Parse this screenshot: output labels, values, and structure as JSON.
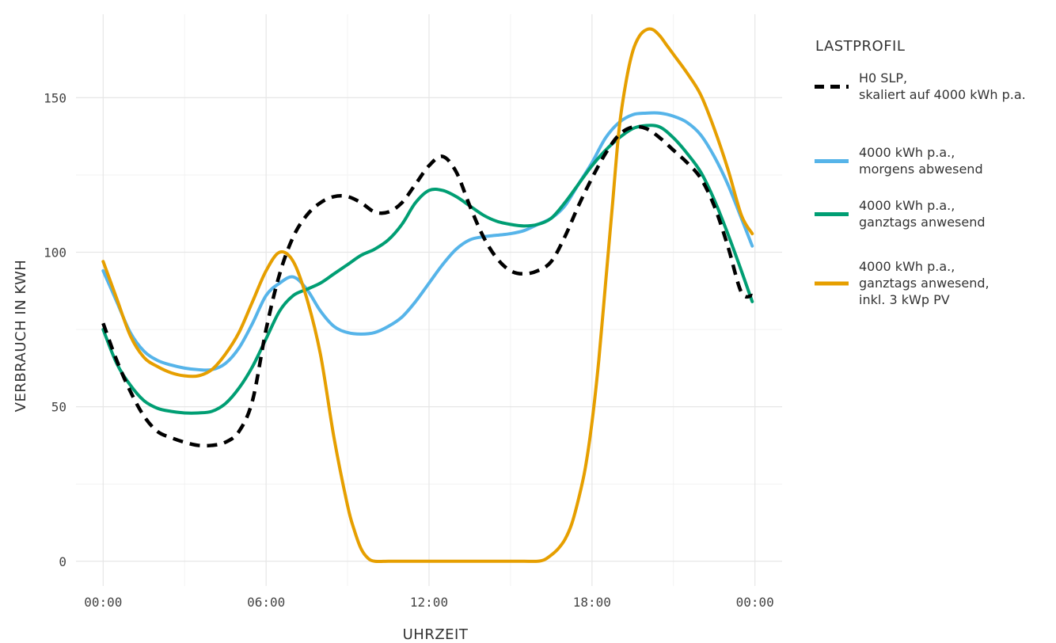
{
  "chart_data": {
    "type": "line",
    "xlabel": "UHRZEIT",
    "ylabel": "VERBRAUCH IN KWH",
    "x_tick_labels": [
      "00:00",
      "06:00",
      "12:00",
      "18:00",
      "00:00"
    ],
    "x_tick_hours": [
      0,
      6,
      12,
      18,
      24
    ],
    "y_ticks": [
      0,
      50,
      100,
      150
    ],
    "xlim_hours": [
      -1,
      25
    ],
    "ylim": [
      -8,
      177
    ],
    "grid": true,
    "legend_position": "right",
    "legend_title": "LASTPROFIL",
    "series": [
      {
        "name": "H0 SLP,\nskaliert auf 4000 kWh p.a.",
        "color": "#000000",
        "dashed": true,
        "hours": [
          0,
          0.5,
          1,
          1.5,
          2,
          2.5,
          3,
          3.5,
          4,
          4.5,
          5,
          5.5,
          6,
          6.5,
          7,
          7.5,
          8,
          8.5,
          9,
          9.5,
          10,
          10.5,
          11,
          11.5,
          12,
          12.5,
          13,
          13.5,
          14,
          14.5,
          15,
          15.5,
          16,
          16.5,
          17,
          17.5,
          18,
          18.5,
          19,
          19.5,
          20,
          20.5,
          21,
          21.5,
          22,
          22.5,
          23,
          23.5,
          23.9
        ],
        "values": [
          77,
          65,
          55,
          47,
          42,
          40,
          38.5,
          37.5,
          37.5,
          38.5,
          42,
          52,
          75,
          93,
          105,
          112,
          116,
          118,
          118,
          116,
          113,
          113,
          116,
          122,
          128,
          131,
          126,
          115,
          105,
          98,
          94,
          93,
          94,
          97,
          105,
          115,
          124,
          132,
          138,
          140.5,
          140,
          137,
          133,
          129,
          124,
          115,
          102,
          87,
          86
        ]
      },
      {
        "name": "4000 kWh p.a.,\nmorgens abwesend",
        "color": "#56b4e9",
        "dashed": false,
        "hours": [
          0,
          0.5,
          1,
          1.5,
          2,
          2.5,
          3,
          3.5,
          4,
          4.5,
          5,
          5.5,
          6,
          6.5,
          7,
          7.5,
          8,
          8.5,
          9,
          9.5,
          10,
          10.5,
          11,
          11.5,
          12,
          12.5,
          13,
          13.5,
          14,
          14.5,
          15,
          15.5,
          16,
          16.5,
          17,
          17.5,
          18,
          18.5,
          19,
          19.5,
          20,
          20.5,
          21,
          21.5,
          22,
          22.5,
          23,
          23.5,
          23.9
        ],
        "values": [
          94,
          84,
          74,
          68,
          65,
          63.5,
          62.5,
          62,
          62,
          64,
          69,
          77,
          86,
          90,
          92,
          88,
          81,
          76,
          74,
          73.5,
          74,
          76,
          79,
          84,
          90,
          96,
          101,
          104,
          105,
          105.5,
          106,
          107,
          109,
          111,
          115,
          122,
          129,
          137,
          142,
          144.5,
          145,
          145,
          144,
          142,
          138,
          131,
          122,
          111,
          102
        ]
      },
      {
        "name": "4000 kWh p.a.,\nganztags anwesend",
        "color": "#009e73",
        "dashed": false,
        "hours": [
          0,
          0.5,
          1,
          1.5,
          2,
          2.5,
          3,
          3.5,
          4,
          4.5,
          5,
          5.5,
          6,
          6.5,
          7,
          7.5,
          8,
          8.5,
          9,
          9.5,
          10,
          10.5,
          11,
          11.5,
          12,
          12.5,
          13,
          13.5,
          14,
          14.5,
          15,
          15.5,
          16,
          16.5,
          17,
          17.5,
          18,
          18.5,
          19,
          19.5,
          20,
          20.5,
          21,
          21.5,
          22,
          22.5,
          23,
          23.5,
          23.9
        ],
        "values": [
          75,
          64,
          57,
          52,
          49.5,
          48.5,
          48,
          48,
          48.5,
          51,
          56,
          63,
          72,
          81,
          86,
          88,
          90,
          93,
          96,
          99,
          101,
          104,
          109,
          116,
          120,
          120,
          118,
          115,
          112,
          110,
          109,
          108.5,
          109,
          111,
          116,
          122,
          128,
          133,
          137,
          140,
          141,
          140.5,
          137,
          132,
          126,
          117,
          106,
          94,
          84
        ]
      },
      {
        "name": "4000 kWh p.a.,\nganztags anwesend,\ninkl. 3 kWp PV",
        "color": "#e69f00",
        "dashed": false,
        "hours": [
          0,
          0.5,
          1,
          1.5,
          2,
          2.5,
          3,
          3.5,
          4,
          4.5,
          5,
          5.5,
          6,
          6.5,
          7,
          7.5,
          8,
          8.5,
          9,
          9.25,
          9.5,
          9.75,
          10,
          10.5,
          11,
          12,
          13,
          14,
          15,
          15.5,
          16,
          16.25,
          16.5,
          16.75,
          17,
          17.25,
          17.5,
          17.75,
          18,
          18.25,
          18.5,
          18.75,
          19,
          19.25,
          19.5,
          19.75,
          20,
          20.25,
          20.5,
          20.75,
          21,
          21.5,
          22,
          22.5,
          23,
          23.5,
          23.9
        ],
        "values": [
          97,
          85,
          73,
          66,
          63,
          61,
          60,
          60,
          62,
          67,
          74,
          84,
          94,
          100,
          97,
          85,
          67,
          40,
          18,
          10,
          4,
          1,
          0,
          0,
          0,
          0,
          0,
          0,
          0,
          0,
          0,
          0.5,
          2,
          4,
          7,
          12,
          20,
          30,
          45,
          65,
          90,
          115,
          140,
          155,
          165,
          170,
          172,
          172,
          170,
          167,
          164,
          158,
          151,
          140,
          127,
          112,
          106
        ]
      }
    ]
  }
}
